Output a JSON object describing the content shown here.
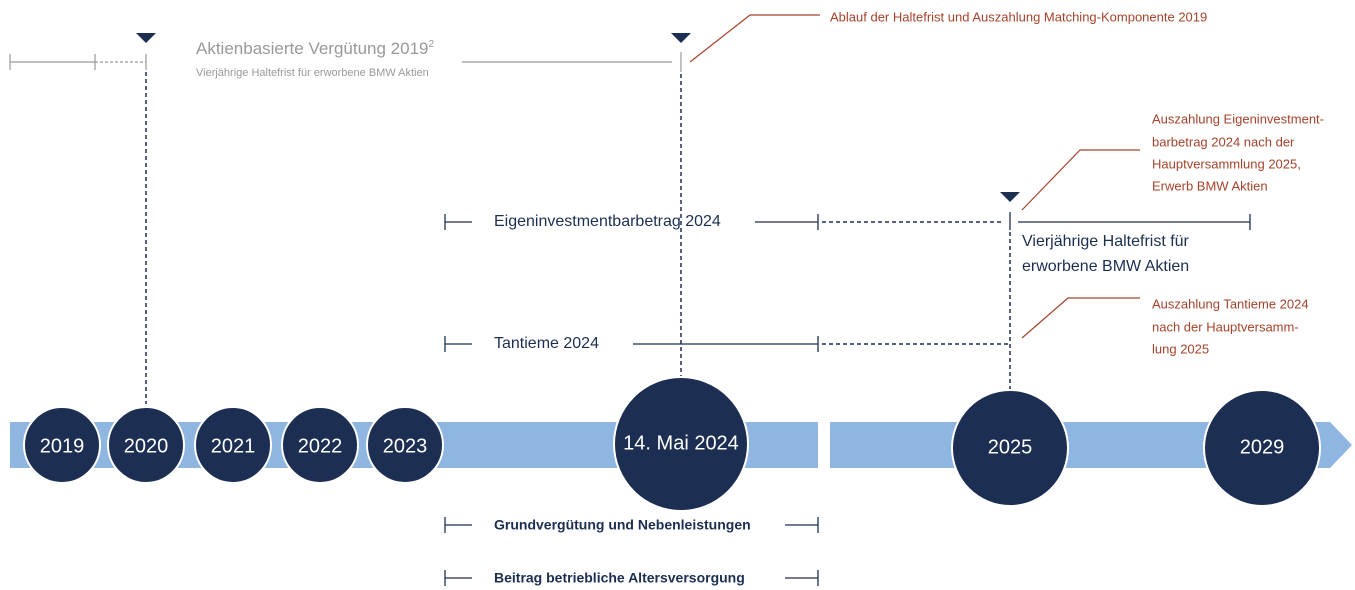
{
  "timeline": {
    "years": [
      "2019",
      "2020",
      "2021",
      "2022",
      "2023",
      "14. Mai 2024",
      "2025",
      "2029"
    ]
  },
  "share_plan": {
    "title": "Aktienbasierte Vergütung 2019",
    "footnote": "2",
    "subtitle": "Vierjährige Haltefrist für erworbene BMW Aktien"
  },
  "callouts": [
    {
      "lines": [
        "Ablauf der Haltefrist und Auszahlung Matching-Komponente 2019"
      ]
    },
    {
      "lines": [
        "Auszahlung Eigeninvestment-",
        "barbetrag 2024 nach der",
        "Hauptversammlung 2025,",
        "Erwerb BMW Aktien"
      ]
    },
    {
      "lines": [
        "Auszahlung Tantieme 2024",
        "nach der Hauptversamm-",
        "lung 2025"
      ]
    }
  ],
  "bars": [
    {
      "label": "Eigeninvestmentbarbetrag 2024"
    },
    {
      "label": "Tantieme 2024"
    },
    {
      "label": "Grundvergütung und Nebenleistungen"
    },
    {
      "label": "Beitrag betriebliche Altersversorgung"
    }
  ],
  "holding": {
    "lines": [
      "Vierjährige Haltefrist für",
      "erworbene BMW Aktien"
    ]
  }
}
